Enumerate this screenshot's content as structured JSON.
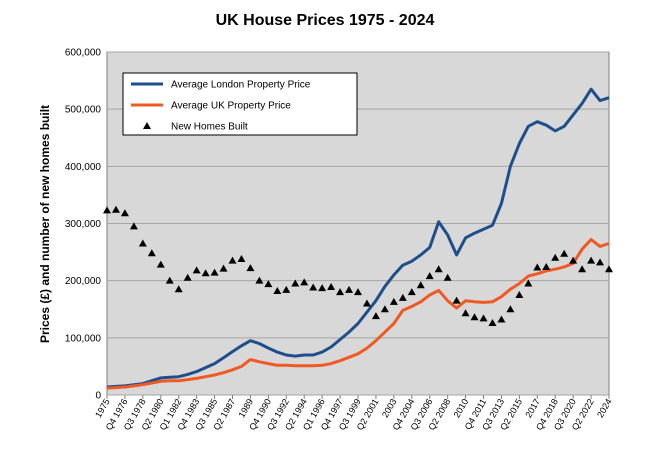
{
  "chart_data": {
    "type": "line",
    "title": "UK House Prices 1975 - 2024",
    "y_label": "Prices (£) and number of new homes built",
    "categories": [
      "1975",
      null,
      "Q4 1976",
      null,
      "Q3 1978",
      null,
      "Q2 1980",
      null,
      "Q1 1982",
      null,
      "Q4 1983",
      null,
      "Q3 1985",
      null,
      "Q2 1987",
      null,
      "1989",
      null,
      "Q4 1990",
      null,
      "Q3 1992",
      null,
      "Q2 1994",
      null,
      "Q1 1996",
      null,
      "Q4 1997",
      null,
      "Q3 1999",
      null,
      "Q2 2001",
      null,
      "2003",
      null,
      "Q4 2004",
      null,
      "Q3 2006",
      null,
      "Q2 2008",
      null,
      "2010",
      null,
      "Q4 2011",
      null,
      "Q3 2013",
      null,
      "Q2 2015",
      null,
      "2017",
      null,
      "Q4 2018",
      null,
      "Q3 2020",
      null,
      "Q2 2022",
      null,
      "2024"
    ],
    "series": [
      {
        "name": "Average London Property Price",
        "color": "#1f4e8c",
        "mark": "line",
        "values": [
          14000,
          15000,
          16000,
          18000,
          20000,
          25000,
          30000,
          31000,
          32000,
          36000,
          41000,
          48000,
          55000,
          65000,
          76000,
          86000,
          95000,
          90000,
          82000,
          75000,
          70000,
          68000,
          70000,
          70000,
          75000,
          84000,
          97000,
          110000,
          125000,
          145000,
          165000,
          190000,
          210000,
          227000,
          234000,
          245000,
          258000,
          303000,
          280000,
          245000,
          275000,
          283000,
          290000,
          297000,
          335000,
          400000,
          440000,
          470000,
          478000,
          472000,
          462000,
          470000,
          490000,
          510000,
          535000,
          515000,
          520000
        ]
      },
      {
        "name": "Average UK Property Price",
        "color": "#f05a22",
        "mark": "line",
        "values": [
          12000,
          13000,
          14000,
          16000,
          18000,
          21000,
          24000,
          25000,
          25000,
          27000,
          29000,
          32000,
          35000,
          39000,
          44000,
          50000,
          62000,
          58000,
          55000,
          52000,
          52000,
          51000,
          51000,
          51000,
          52000,
          55000,
          60000,
          66000,
          72000,
          82000,
          95000,
          110000,
          125000,
          148000,
          155000,
          163000,
          175000,
          183000,
          165000,
          152000,
          165000,
          163000,
          162000,
          163000,
          172000,
          185000,
          195000,
          208000,
          212000,
          217000,
          220000,
          224000,
          230000,
          255000,
          272000,
          260000,
          265000
        ]
      },
      {
        "name": "New Homes Built",
        "color": "#000000",
        "mark": "triangle",
        "values": [
          323000,
          324000,
          318000,
          295000,
          265000,
          248000,
          228000,
          200000,
          185000,
          205000,
          218000,
          213000,
          214000,
          221000,
          235000,
          238000,
          222000,
          200000,
          194000,
          182000,
          184000,
          195000,
          197000,
          188000,
          187000,
          189000,
          180000,
          184000,
          180000,
          160000,
          138000,
          150000,
          163000,
          170000,
          180000,
          192000,
          208000,
          220000,
          205000,
          165000,
          143000,
          136000,
          134000,
          126000,
          132000,
          150000,
          175000,
          195000,
          223000,
          224000,
          240000,
          247000,
          235000,
          220000,
          235000,
          232000,
          220000
        ]
      }
    ],
    "ylim": [
      0,
      600000
    ],
    "yticks": [
      0,
      {
        "value": 100000,
        "label": "100,000"
      },
      {
        "value": 200000,
        "label": "200,000"
      },
      {
        "value": 300000,
        "label": "300,000"
      },
      {
        "value": 400000,
        "label": "400,000"
      },
      {
        "value": 500000,
        "label": "500,000"
      },
      {
        "value": 600000,
        "label": "600,000"
      }
    ],
    "grid": true,
    "legend": "upper left",
    "background": "#d8d8d8"
  }
}
